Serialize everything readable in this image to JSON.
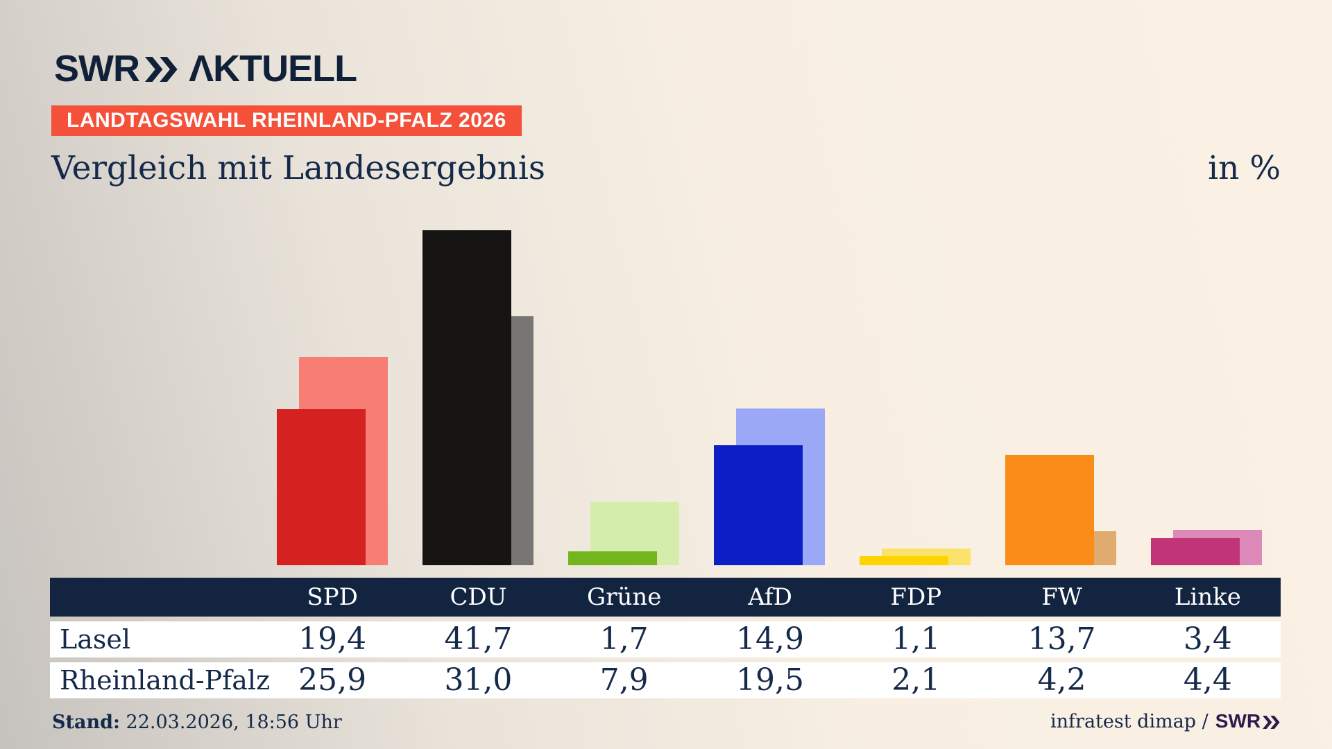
{
  "brand": {
    "name_left": "SWR",
    "name_right": "ΛKTUELL"
  },
  "badge_text": "LANDTAGSWAHL RHEINLAND-PFALZ 2026",
  "title": "Vergleich mit Landesergebnis",
  "unit": "in %",
  "chart_data": {
    "type": "bar",
    "title": "Vergleich mit Landesergebnis",
    "unit": "%",
    "categories": [
      "SPD",
      "CDU",
      "Grüne",
      "AfD",
      "FDP",
      "FW",
      "Linke"
    ],
    "series": [
      {
        "name": "Lasel",
        "values": [
          19.4,
          41.7,
          1.7,
          14.9,
          1.1,
          13.7,
          3.4
        ],
        "colors": [
          "#d52120",
          "#161412",
          "#73b51d",
          "#0c1fc6",
          "#fdd402",
          "#fa8d1a",
          "#c23478"
        ]
      },
      {
        "name": "Rheinland-Pfalz",
        "values": [
          25.9,
          31.0,
          7.9,
          19.5,
          2.1,
          4.2,
          4.4
        ],
        "colors": [
          "#f87d74",
          "#787674",
          "#d5edaa",
          "#9aa8f6",
          "#fbe36b",
          "#dfab6e",
          "#dd8aba"
        ]
      }
    ],
    "ylim": [
      0,
      44.6
    ],
    "grid": false,
    "legend": "table-below"
  },
  "table": {
    "columns": [
      "SPD",
      "CDU",
      "Grüne",
      "AfD",
      "FDP",
      "FW",
      "Linke"
    ],
    "rows": [
      {
        "label": "Lasel",
        "values": [
          "19,4",
          "41,7",
          "1,7",
          "14,9",
          "1,1",
          "13,7",
          "3,4"
        ]
      },
      {
        "label": "Rheinland-Pfalz",
        "values": [
          "25,9",
          "31,0",
          "7,9",
          "19,5",
          "2,1",
          "4,2",
          "4,4"
        ]
      }
    ]
  },
  "footer": {
    "stand_label": "Stand:",
    "stand_value": "22.03.2026, 18:56 Uhr",
    "source_text": "infratest dimap /",
    "source_brand": "SWR"
  },
  "colors": {
    "badge_bg": "#f4503a",
    "navy_text": "#15294a",
    "table_header_bg": "#122440",
    "logo_navy": "#0f2038",
    "footer_brand_purple": "#2c1b4e"
  }
}
